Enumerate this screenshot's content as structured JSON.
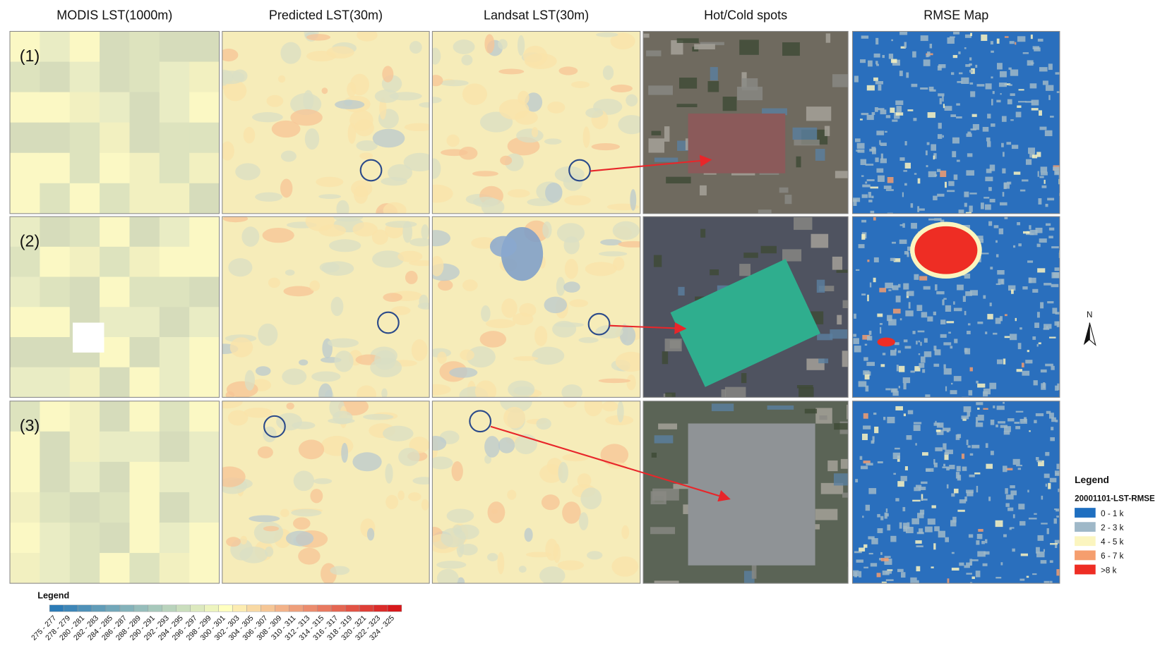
{
  "columns": [
    "MODIS LST(1000m)",
    "Predicted LST(30m)",
    "Landsat LST(30m)",
    "Hot/Cold spots",
    "RMSE Map"
  ],
  "rows": [
    "(1)",
    "(2)",
    "(3)"
  ],
  "lst_legend": {
    "title": "Legend",
    "labels": [
      "275 - 277",
      "278 - 279",
      "280 - 281",
      "282 - 283",
      "284 - 285",
      "286 - 287",
      "288 - 289",
      "290 - 291",
      "292 - 293",
      "294 - 295",
      "296 - 297",
      "298 - 299",
      "300 - 301",
      "302 - 303",
      "304 - 305",
      "306 - 307",
      "308 - 309",
      "310 - 311",
      "312 - 313",
      "314 - 315",
      "316 - 317",
      "318 - 319",
      "320 - 321",
      "322 - 323",
      "324 - 325"
    ]
  },
  "rmse_legend": {
    "title": "Legend",
    "subtitle": "20001101-LST-RMSE",
    "items": [
      {
        "label": "0 - 1 k",
        "color": "#1f6fc0"
      },
      {
        "label": "2 - 3 k",
        "color": "#9fb8c8"
      },
      {
        "label": "4 - 5 k",
        "color": "#fbf5bf"
      },
      {
        "label": "6 - 7 k",
        "color": "#f59e6e"
      },
      {
        "label": ">8 k",
        "color": "#ee2d24"
      }
    ]
  },
  "north": "N"
}
